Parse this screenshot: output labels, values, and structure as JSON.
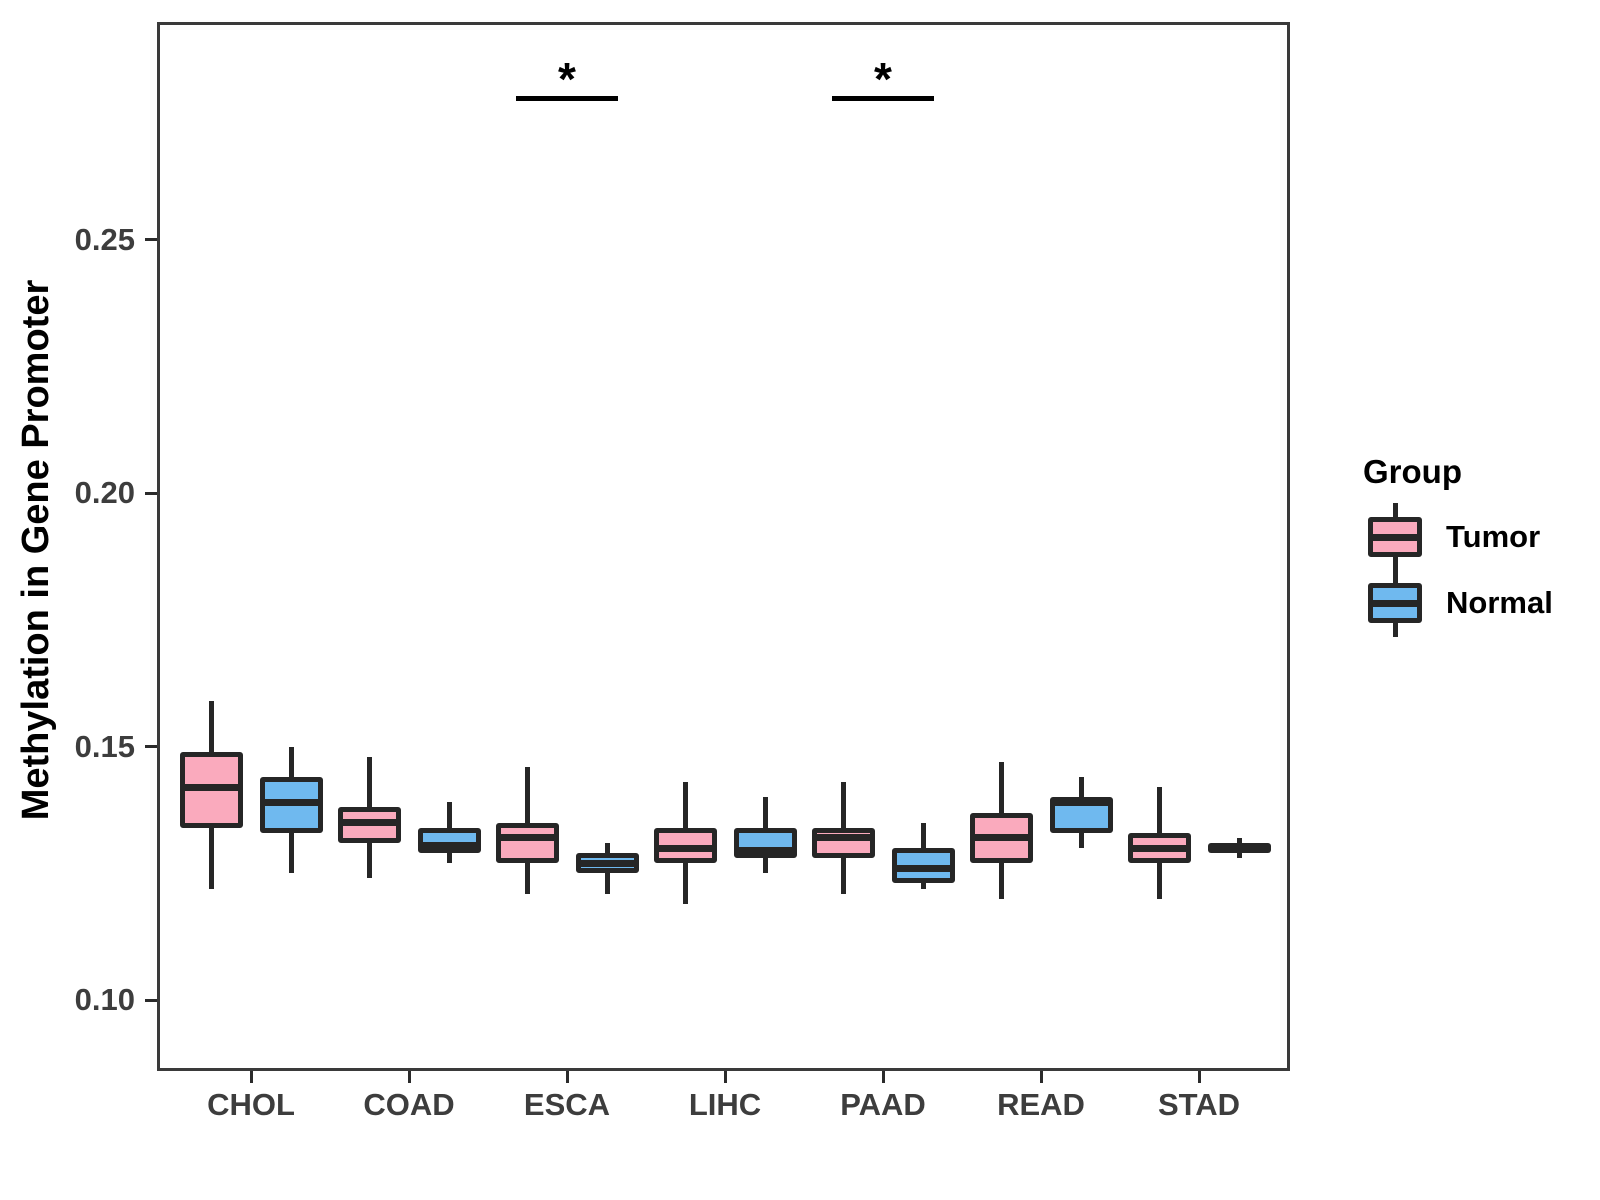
{
  "chart_data": {
    "type": "boxplot",
    "title": "",
    "xlabel": "",
    "ylabel": "Methylation in Gene Promoter",
    "grid": false,
    "categories": [
      "CHOL",
      "COAD",
      "ESCA",
      "LIHC",
      "PAAD",
      "READ",
      "STAD"
    ],
    "ylim": [
      0.086,
      0.293
    ],
    "y_ticks": [
      {
        "value": 0.1,
        "label": "0.10"
      },
      {
        "value": 0.15,
        "label": "0.15"
      },
      {
        "value": 0.2,
        "label": "0.20"
      },
      {
        "value": 0.25,
        "label": "0.25"
      }
    ],
    "series": [
      {
        "name": "Tumor",
        "color": "#FAAABD",
        "boxes": [
          {
            "category": "CHOL",
            "min": 0.122,
            "q1": 0.134,
            "median": 0.142,
            "q3": 0.149,
            "max": 0.159
          },
          {
            "category": "COAD",
            "min": 0.124,
            "q1": 0.131,
            "median": 0.135,
            "q3": 0.138,
            "max": 0.148
          },
          {
            "category": "ESCA",
            "min": 0.121,
            "q1": 0.127,
            "median": 0.132,
            "q3": 0.135,
            "max": 0.146
          },
          {
            "category": "LIHC",
            "min": 0.119,
            "q1": 0.127,
            "median": 0.13,
            "q3": 0.134,
            "max": 0.143
          },
          {
            "category": "PAAD",
            "min": 0.121,
            "q1": 0.128,
            "median": 0.132,
            "q3": 0.134,
            "max": 0.143
          },
          {
            "category": "READ",
            "min": 0.12,
            "q1": 0.127,
            "median": 0.132,
            "q3": 0.137,
            "max": 0.147
          },
          {
            "category": "STAD",
            "min": 0.12,
            "q1": 0.127,
            "median": 0.13,
            "q3": 0.133,
            "max": 0.142
          }
        ]
      },
      {
        "name": "Normal",
        "color": "#6FB9EF",
        "boxes": [
          {
            "category": "CHOL",
            "min": 0.125,
            "q1": 0.133,
            "median": 0.139,
            "q3": 0.144,
            "max": 0.15
          },
          {
            "category": "COAD",
            "min": 0.127,
            "q1": 0.129,
            "median": 0.1305,
            "q3": 0.134,
            "max": 0.139
          },
          {
            "category": "ESCA",
            "min": 0.121,
            "q1": 0.125,
            "median": 0.127,
            "q3": 0.129,
            "max": 0.131
          },
          {
            "category": "LIHC",
            "min": 0.125,
            "q1": 0.128,
            "median": 0.1295,
            "q3": 0.134,
            "max": 0.14
          },
          {
            "category": "PAAD",
            "min": 0.122,
            "q1": 0.123,
            "median": 0.126,
            "q3": 0.13,
            "max": 0.135
          },
          {
            "category": "READ",
            "min": 0.13,
            "q1": 0.133,
            "median": 0.139,
            "q3": 0.14,
            "max": 0.144
          },
          {
            "category": "STAD",
            "min": 0.128,
            "q1": 0.129,
            "median": 0.13,
            "q3": 0.131,
            "max": 0.132
          }
        ]
      }
    ],
    "significance": [
      {
        "category": "ESCA",
        "label": "*",
        "y_value": 0.278
      },
      {
        "category": "PAAD",
        "label": "*",
        "y_value": 0.278
      }
    ],
    "legend": {
      "title": "Group",
      "position": "right",
      "entries": [
        {
          "label": "Tumor",
          "color": "#FAAABD"
        },
        {
          "label": "Normal",
          "color": "#6FB9EF"
        }
      ]
    },
    "colors": {
      "box_border": "#262626",
      "panel_border": "#3A3A3A",
      "tick_label": "#3D3D3D",
      "significance": "#000000"
    }
  }
}
